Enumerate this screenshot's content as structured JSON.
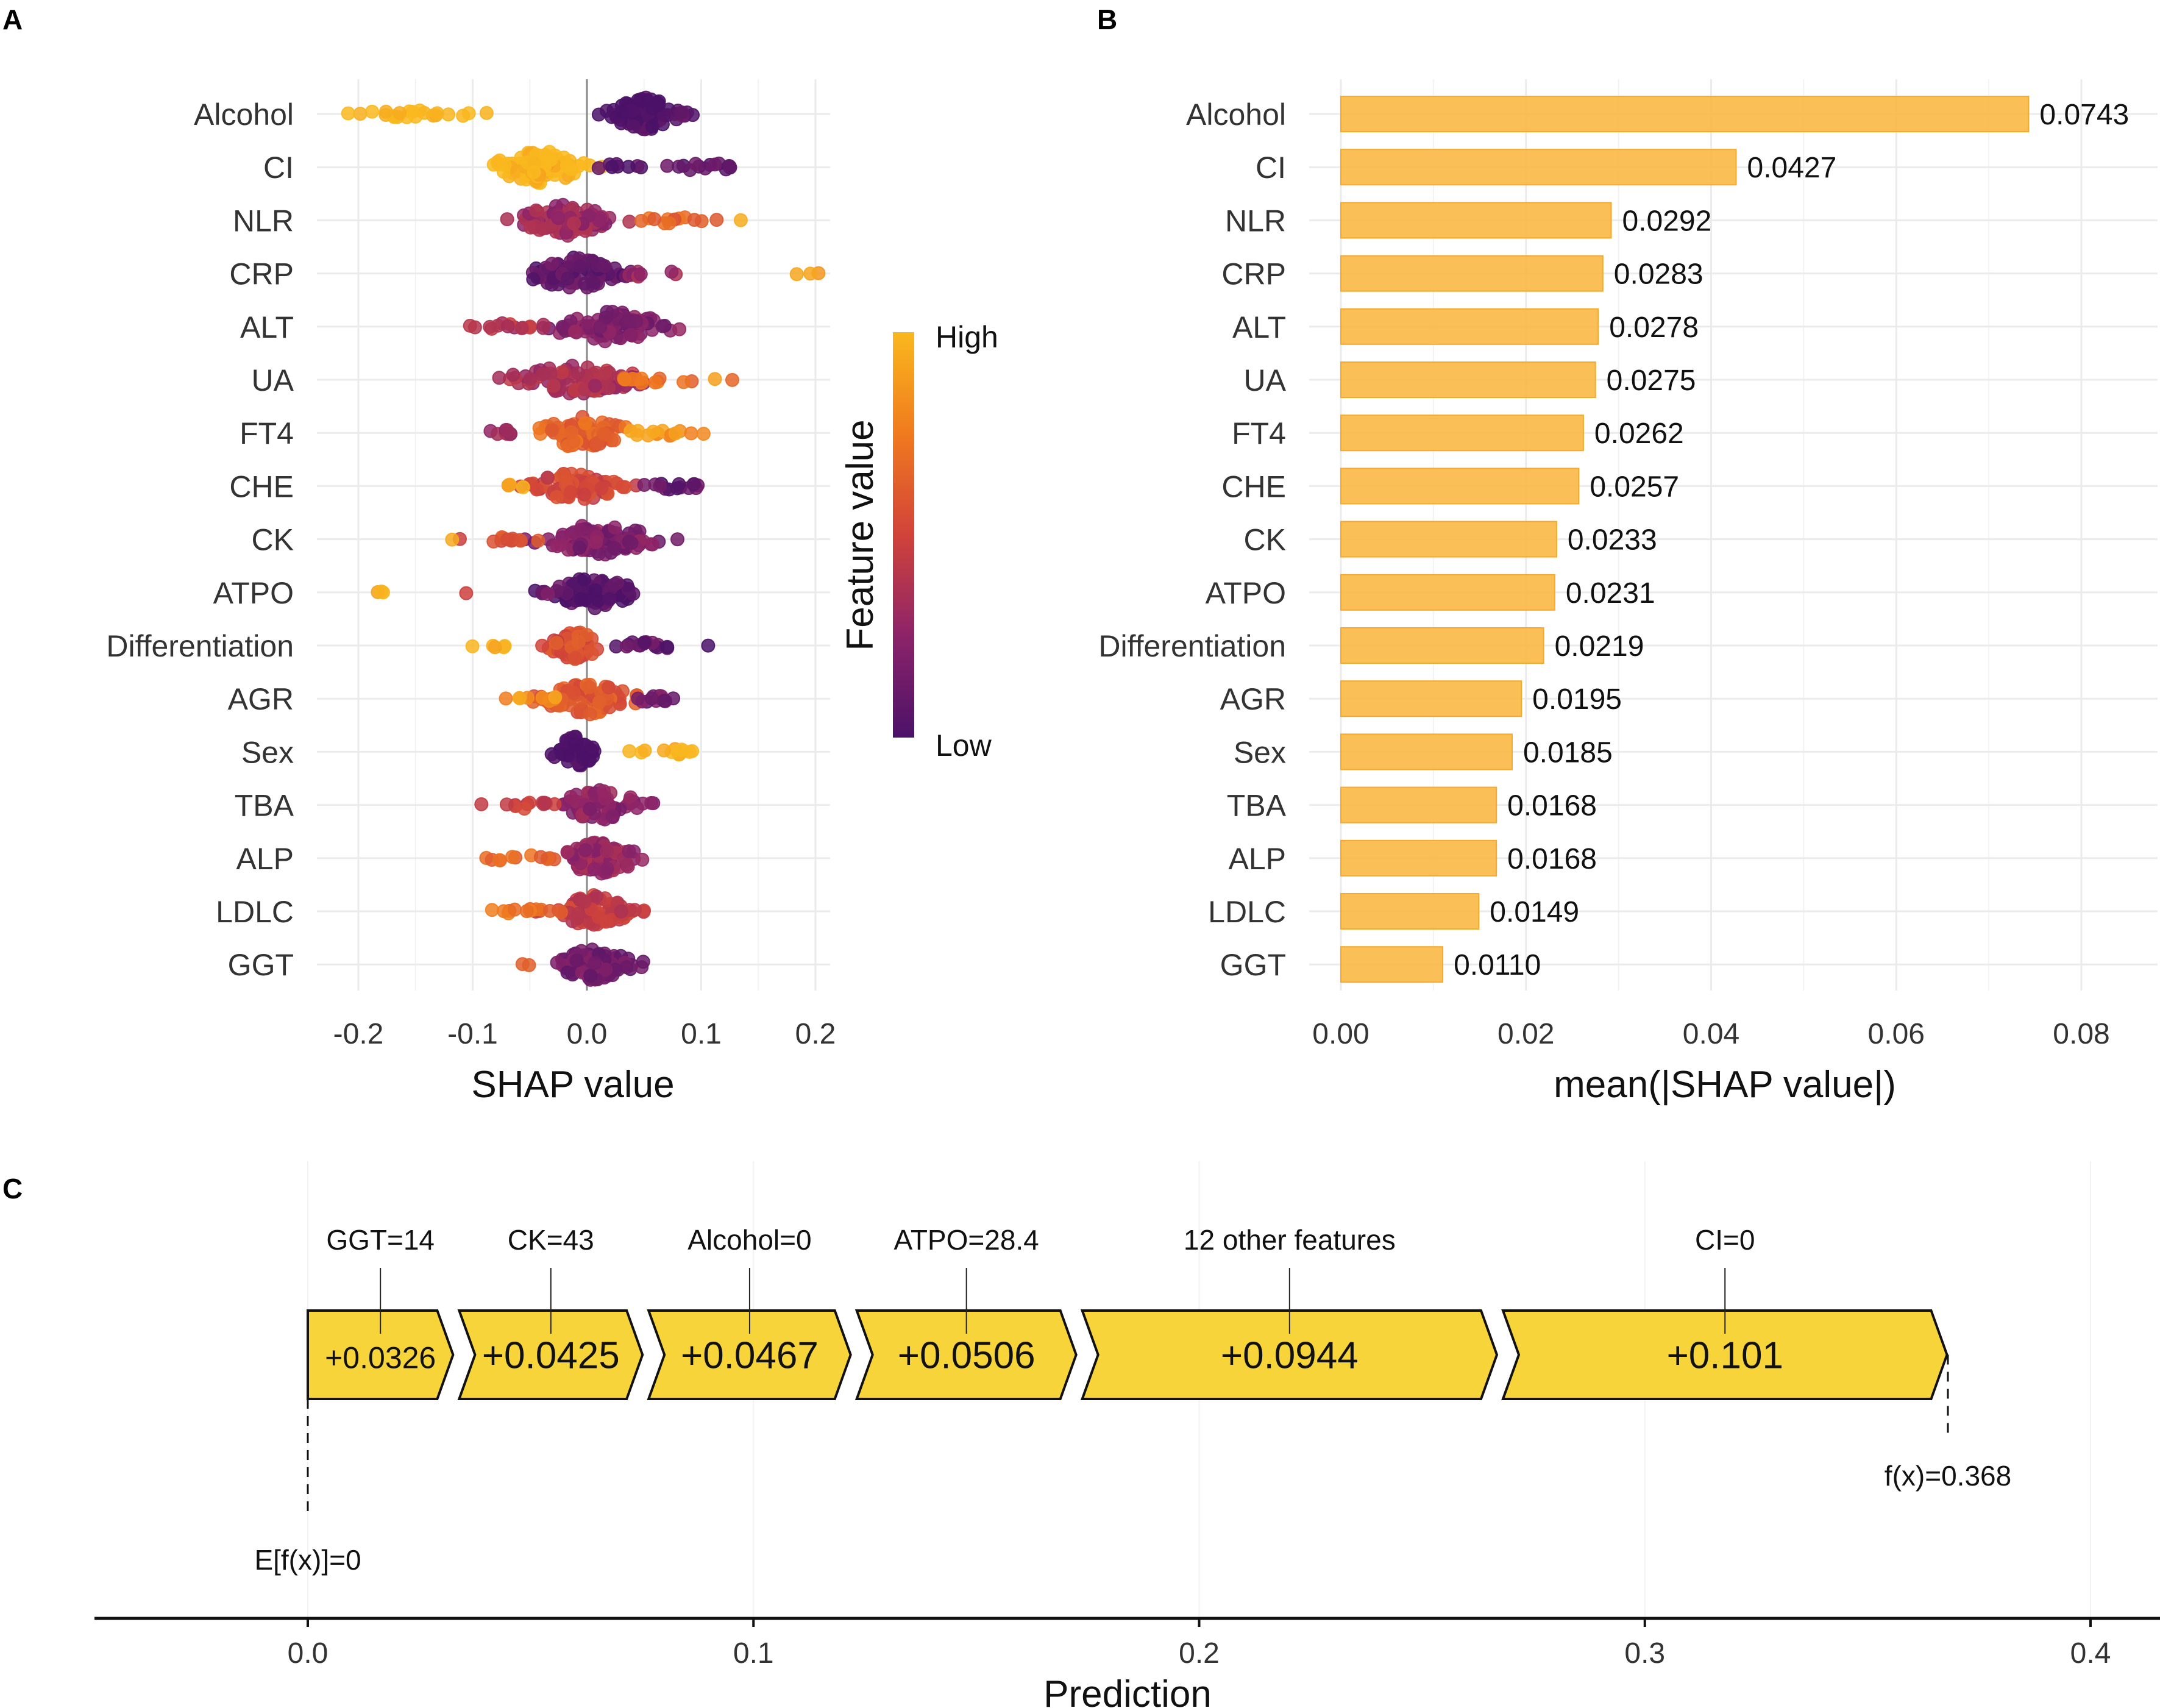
{
  "panels": {
    "a_label": "A",
    "b_label": "B",
    "c_label": "C"
  },
  "chart_data": [
    {
      "id": "A",
      "type": "scatter",
      "subtype": "shap-beeswarm",
      "title": "",
      "xlabel": "SHAP value",
      "ylabel": "",
      "xlim": [
        -0.25,
        0.21
      ],
      "xticks": [
        -0.2,
        -0.1,
        0.0,
        0.1,
        0.2
      ],
      "xtick_labels": [
        "-0.2",
        "-0.1",
        "0.0",
        "0.1",
        "0.2"
      ],
      "grid": true,
      "zero_line": true,
      "categories": [
        "Alcohol",
        "CI",
        "NLR",
        "CRP",
        "ALT",
        "UA",
        "FT4",
        "CHE",
        "CK",
        "ATPO",
        "Differentiation",
        "AGR",
        "Sex",
        "TBA",
        "ALP",
        "LDLC",
        "GGT"
      ],
      "legend": {
        "title": "Feature value",
        "high_label": "High",
        "low_label": "Low",
        "placement": "right",
        "color_high": "#f9b81e",
        "color_mid": "#d1433a",
        "color_low": "#4b1268"
      },
      "rows": [
        {
          "feature": "Alcohol",
          "clusters": [
            {
              "center": 0.05,
              "spread": 0.025,
              "height": 0.7,
              "n": 90,
              "value": 0.0
            },
            {
              "center": -0.145,
              "spread": 0.06,
              "height": 0.15,
              "n": 22,
              "value": 1.0
            },
            {
              "center": 0.095,
              "spread": 0.01,
              "height": 0.2,
              "n": 3,
              "value": 0.1
            }
          ]
        },
        {
          "feature": "CI",
          "clusters": [
            {
              "center": -0.04,
              "spread": 0.032,
              "height": 0.7,
              "n": 90,
              "value": 1.0
            },
            {
              "center": 0.03,
              "spread": 0.02,
              "height": 0.15,
              "n": 8,
              "value": 0.05
            },
            {
              "center": 0.1,
              "spread": 0.03,
              "height": 0.2,
              "n": 14,
              "value": 0.05
            }
          ]
        },
        {
          "feature": "NLR",
          "clusters": [
            {
              "center": -0.02,
              "spread": 0.035,
              "height": 0.65,
              "n": 80,
              "value": 0.3
            },
            {
              "center": 0.075,
              "spread": 0.03,
              "height": 0.15,
              "n": 12,
              "value": 0.65
            },
            {
              "center": 0.135,
              "spread": 0.003,
              "height": 0.05,
              "n": 1,
              "value": 0.95
            }
          ]
        },
        {
          "feature": "CRP",
          "clusters": [
            {
              "center": -0.01,
              "spread": 0.035,
              "height": 0.65,
              "n": 80,
              "value": 0.08
            },
            {
              "center": 0.05,
              "spread": 0.03,
              "height": 0.15,
              "n": 8,
              "value": 0.3
            },
            {
              "center": 0.185,
              "spread": 0.012,
              "height": 0.1,
              "n": 3,
              "value": 0.85
            }
          ]
        },
        {
          "feature": "ALT",
          "clusters": [
            {
              "center": 0.02,
              "spread": 0.04,
              "height": 0.65,
              "n": 85,
              "value": 0.2
            },
            {
              "center": -0.07,
              "spread": 0.035,
              "height": 0.15,
              "n": 14,
              "value": 0.4
            },
            {
              "center": 0.065,
              "spread": 0.005,
              "height": 0.05,
              "n": 2,
              "value": 0.15
            }
          ]
        },
        {
          "feature": "UA",
          "clusters": [
            {
              "center": -0.01,
              "spread": 0.045,
              "height": 0.65,
              "n": 85,
              "value": 0.35
            },
            {
              "center": 0.06,
              "spread": 0.035,
              "height": 0.15,
              "n": 14,
              "value": 0.7
            },
            {
              "center": 0.11,
              "spread": 0.003,
              "height": 0.05,
              "n": 1,
              "value": 0.95
            }
          ]
        },
        {
          "feature": "FT4",
          "clusters": [
            {
              "center": -0.005,
              "spread": 0.035,
              "height": 0.65,
              "n": 80,
              "value": 0.65
            },
            {
              "center": 0.06,
              "spread": 0.03,
              "height": 0.15,
              "n": 14,
              "value": 0.85
            },
            {
              "center": -0.07,
              "spread": 0.02,
              "height": 0.15,
              "n": 8,
              "value": 0.3
            }
          ]
        },
        {
          "feature": "CHE",
          "clusters": [
            {
              "center": -0.01,
              "spread": 0.03,
              "height": 0.65,
              "n": 75,
              "value": 0.5
            },
            {
              "center": 0.075,
              "spread": 0.03,
              "height": 0.15,
              "n": 14,
              "value": 0.08
            },
            {
              "center": -0.06,
              "spread": 0.012,
              "height": 0.1,
              "n": 4,
              "value": 0.9
            }
          ]
        },
        {
          "feature": "CK",
          "clusters": [
            {
              "center": 0.01,
              "spread": 0.04,
              "height": 0.65,
              "n": 85,
              "value": 0.2
            },
            {
              "center": -0.06,
              "spread": 0.03,
              "height": 0.15,
              "n": 12,
              "value": 0.55
            },
            {
              "center": -0.12,
              "spread": 0.003,
              "height": 0.05,
              "n": 1,
              "value": 0.95
            }
          ]
        },
        {
          "feature": "ATPO",
          "clusters": [
            {
              "center": 0.005,
              "spread": 0.03,
              "height": 0.65,
              "n": 85,
              "value": 0.05
            },
            {
              "center": -0.03,
              "spread": 0.012,
              "height": 0.15,
              "n": 6,
              "value": 0.12
            },
            {
              "center": -0.18,
              "spread": 0.02,
              "height": 0.05,
              "n": 3,
              "value": 1.0
            },
            {
              "center": -0.105,
              "spread": 0.002,
              "height": 0.05,
              "n": 1,
              "value": 0.45
            }
          ]
        },
        {
          "feature": "Differentiation",
          "clusters": [
            {
              "center": -0.01,
              "spread": 0.018,
              "height": 0.6,
              "n": 65,
              "value": 0.55
            },
            {
              "center": 0.05,
              "spread": 0.035,
              "height": 0.15,
              "n": 16,
              "value": 0.1
            },
            {
              "center": -0.075,
              "spread": 0.025,
              "height": 0.1,
              "n": 5,
              "value": 1.0
            },
            {
              "center": 0.11,
              "spread": 0.003,
              "height": 0.05,
              "n": 1,
              "value": 0.05
            }
          ]
        },
        {
          "feature": "AGR",
          "clusters": [
            {
              "center": 0.0,
              "spread": 0.035,
              "height": 0.65,
              "n": 80,
              "value": 0.6
            },
            {
              "center": 0.055,
              "spread": 0.025,
              "height": 0.15,
              "n": 12,
              "value": 0.15
            },
            {
              "center": -0.045,
              "spread": 0.02,
              "height": 0.15,
              "n": 8,
              "value": 0.85
            }
          ]
        },
        {
          "feature": "Sex",
          "clusters": [
            {
              "center": -0.01,
              "spread": 0.015,
              "height": 0.65,
              "n": 60,
              "value": 0.0
            },
            {
              "center": 0.07,
              "spread": 0.035,
              "height": 0.15,
              "n": 12,
              "value": 1.0
            }
          ]
        },
        {
          "feature": "TBA",
          "clusters": [
            {
              "center": 0.01,
              "spread": 0.03,
              "height": 0.65,
              "n": 80,
              "value": 0.25
            },
            {
              "center": -0.055,
              "spread": 0.03,
              "height": 0.15,
              "n": 12,
              "value": 0.45
            }
          ]
        },
        {
          "feature": "ALP",
          "clusters": [
            {
              "center": 0.01,
              "spread": 0.03,
              "height": 0.65,
              "n": 80,
              "value": 0.3
            },
            {
              "center": -0.055,
              "spread": 0.03,
              "height": 0.15,
              "n": 12,
              "value": 0.65
            }
          ]
        },
        {
          "feature": "LDLC",
          "clusters": [
            {
              "center": 0.005,
              "spread": 0.028,
              "height": 0.65,
              "n": 80,
              "value": 0.45
            },
            {
              "center": -0.055,
              "spread": 0.025,
              "height": 0.15,
              "n": 12,
              "value": 0.7
            }
          ]
        },
        {
          "feature": "GGT",
          "clusters": [
            {
              "center": 0.005,
              "spread": 0.03,
              "height": 0.65,
              "n": 80,
              "value": 0.15
            },
            {
              "center": -0.05,
              "spread": 0.006,
              "height": 0.05,
              "n": 2,
              "value": 0.7
            }
          ]
        }
      ]
    },
    {
      "id": "B",
      "type": "bar",
      "orientation": "horizontal",
      "title": "",
      "xlabel": "mean(|SHAP value|)",
      "ylabel": "",
      "xlim": [
        0,
        0.085
      ],
      "xticks": [
        0.0,
        0.02,
        0.04,
        0.06,
        0.08
      ],
      "xtick_labels": [
        "0.00",
        "0.02",
        "0.04",
        "0.06",
        "0.08"
      ],
      "grid": true,
      "bar_color": "#fbb845",
      "categories": [
        "Alcohol",
        "CI",
        "NLR",
        "CRP",
        "ALT",
        "UA",
        "FT4",
        "CHE",
        "CK",
        "ATPO",
        "Differentiation",
        "AGR",
        "Sex",
        "TBA",
        "ALP",
        "LDLC",
        "GGT"
      ],
      "values": [
        0.0743,
        0.0427,
        0.0292,
        0.0283,
        0.0278,
        0.0275,
        0.0262,
        0.0257,
        0.0233,
        0.0231,
        0.0219,
        0.0195,
        0.0185,
        0.0168,
        0.0168,
        0.0149,
        0.011
      ],
      "value_labels": [
        "0.0743",
        "0.0427",
        "0.0292",
        "0.0283",
        "0.0278",
        "0.0275",
        "0.0262",
        "0.0257",
        "0.0233",
        "0.0231",
        "0.0219",
        "0.0195",
        "0.0185",
        "0.0168",
        "0.0168",
        "0.0149",
        "0.0110"
      ]
    },
    {
      "id": "C",
      "type": "force",
      "title": "",
      "xlabel": "Prediction",
      "ylabel": "",
      "xlim": [
        -0.048,
        0.415
      ],
      "xticks": [
        0.0,
        0.1,
        0.2,
        0.3,
        0.4
      ],
      "xtick_labels": [
        "0.0",
        "0.1",
        "0.2",
        "0.3",
        "0.4"
      ],
      "grid": true,
      "arrow_color": "#f7d43a",
      "base_value": 0,
      "base_label": "E[f(x)]=0",
      "prediction": 0.368,
      "prediction_label": "f(x)=0.368",
      "segments": [
        {
          "feature_label": "GGT=14",
          "value": 0.0326,
          "value_label": "+0.0326"
        },
        {
          "feature_label": "CK=43",
          "value": 0.0425,
          "value_label": "+0.0425"
        },
        {
          "feature_label": "Alcohol=0",
          "value": 0.0467,
          "value_label": "+0.0467"
        },
        {
          "feature_label": "ATPO=28.4",
          "value": 0.0506,
          "value_label": "+0.0506"
        },
        {
          "feature_label": "12 other features",
          "value": 0.0944,
          "value_label": "+0.0944"
        },
        {
          "feature_label": "CI=0",
          "value": 0.101,
          "value_label": "+0.101"
        }
      ]
    }
  ]
}
